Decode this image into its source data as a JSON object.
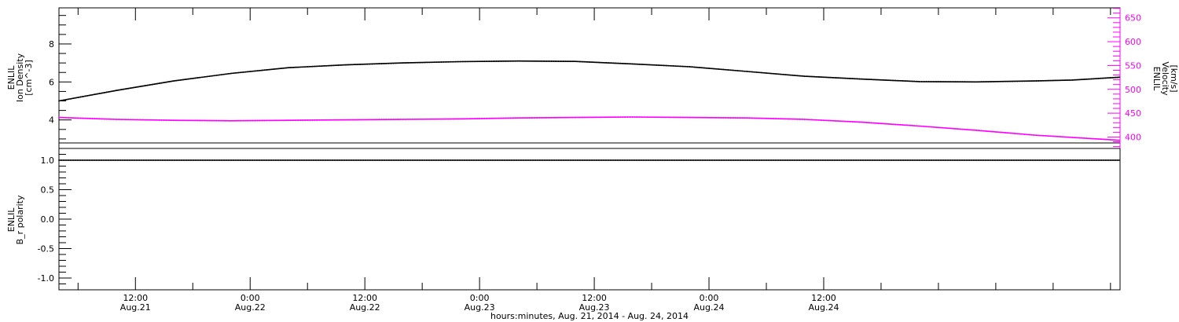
{
  "chart_data": [
    {
      "type": "line",
      "panel": "top",
      "left_axis": {
        "label_lines": [
          "ENLIL",
          "Ion Density",
          "[cm^-3]"
        ],
        "ylim": [
          2.5,
          9.9
        ],
        "major_ticks": [
          4,
          6,
          8
        ],
        "tick_labels": [
          "4",
          "6",
          "8"
        ],
        "color": "#000000"
      },
      "right_axis": {
        "label_lines": [
          "ENLIL",
          "Velocity",
          "[km/s]"
        ],
        "ylim": [
          376,
          671
        ],
        "major_ticks": [
          400,
          450,
          500,
          550,
          600,
          650
        ],
        "tick_labels": [
          "400",
          "450",
          "500",
          "550",
          "600",
          "650"
        ],
        "color": "#ff00ff"
      },
      "series": [
        {
          "name": "Ion Density",
          "axis": "left",
          "color": "#000000",
          "x_hours": [
            0,
            6,
            12,
            18,
            24,
            30,
            36,
            42,
            48,
            54,
            60,
            66,
            72,
            78,
            84,
            90,
            96,
            102,
            106,
            111
          ],
          "values": [
            5.0,
            5.55,
            6.05,
            6.45,
            6.75,
            6.9,
            7.0,
            7.07,
            7.1,
            7.08,
            6.95,
            6.8,
            6.55,
            6.3,
            6.15,
            6.02,
            6.0,
            6.05,
            6.1,
            6.25
          ]
        },
        {
          "name": "Velocity",
          "axis": "right",
          "color": "#ff00ff",
          "x_hours": [
            0,
            6,
            12,
            18,
            24,
            30,
            36,
            42,
            48,
            54,
            60,
            66,
            72,
            78,
            84,
            90,
            96,
            102,
            111
          ],
          "values": [
            441,
            437,
            435,
            434,
            435,
            436,
            437,
            438,
            440,
            441,
            442,
            441,
            440,
            437,
            431,
            423,
            414,
            404,
            393
          ]
        }
      ]
    },
    {
      "type": "line",
      "panel": "bottom",
      "left_axis": {
        "label_lines": [
          "ENLIL",
          "B_r polarity"
        ],
        "ylim": [
          -1.2,
          1.2
        ],
        "major_ticks": [
          -1.0,
          -0.5,
          0.0,
          0.5,
          1.0
        ],
        "tick_labels": [
          "-1.0",
          "-0.5",
          "0.0",
          "0.5",
          "1.0"
        ],
        "color": "#000000"
      },
      "series": [
        {
          "name": "Br polarity",
          "axis": "left",
          "color": "#000000",
          "x_hours": [
            0,
            111
          ],
          "values": [
            1.0,
            1.0
          ]
        }
      ]
    }
  ],
  "x_axis": {
    "hours_start_offset": 0,
    "hours_end": 111,
    "major_ticks_hours": [
      8,
      20,
      32,
      44,
      56,
      68,
      80
    ],
    "major_labels_time": [
      "12:00",
      "0:00",
      "12:00",
      "0:00",
      "12:00",
      "0:00",
      "12:00"
    ],
    "major_labels_date": [
      "Aug.21",
      "Aug.22",
      "Aug.22",
      "Aug.23",
      "Aug.23",
      "Aug.24",
      "Aug.24"
    ],
    "title": "hours:minutes, Aug. 21, 2014 - Aug. 24, 2014"
  }
}
